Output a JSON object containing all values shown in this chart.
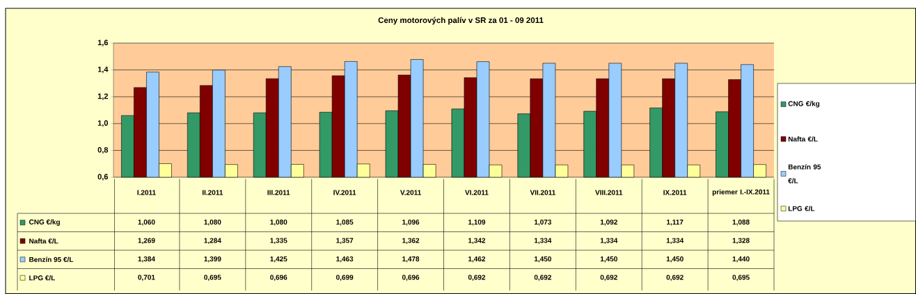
{
  "chart_data": {
    "type": "bar",
    "title": "Ceny motorových palív v SR za 01 - 09 2011",
    "categories": [
      "I.2011",
      "II.2011",
      "III.2011",
      "IV.2011",
      "V.2011",
      "VI.2011",
      "VII.2011",
      "VIII.2011",
      "IX.2011",
      "priemer I.-IX.2011"
    ],
    "series": [
      {
        "name": "CNG €/kg",
        "color": "#339966",
        "values": [
          1.06,
          1.08,
          1.08,
          1.085,
          1.096,
          1.109,
          1.073,
          1.092,
          1.117,
          1.088
        ],
        "value_labels": [
          "1,060",
          "1,080",
          "1,080",
          "1,085",
          "1,096",
          "1,109",
          "1,073",
          "1,092",
          "1,117",
          "1,088"
        ]
      },
      {
        "name": "Nafta €/L",
        "color": "#800000",
        "values": [
          1.269,
          1.284,
          1.335,
          1.357,
          1.362,
          1.342,
          1.334,
          1.334,
          1.334,
          1.328
        ],
        "value_labels": [
          "1,269",
          "1,284",
          "1,335",
          "1,357",
          "1,362",
          "1,342",
          "1,334",
          "1,334",
          "1,334",
          "1,328"
        ]
      },
      {
        "name": "Benzín 95 €/L",
        "color": "#99ccff",
        "values": [
          1.384,
          1.399,
          1.425,
          1.463,
          1.478,
          1.462,
          1.45,
          1.45,
          1.45,
          1.44
        ],
        "value_labels": [
          "1,384",
          "1,399",
          "1,425",
          "1,463",
          "1,478",
          "1,462",
          "1,450",
          "1,450",
          "1,450",
          "1,440"
        ]
      },
      {
        "name": "LPG €/L",
        "color": "#ffff99",
        "values": [
          0.701,
          0.695,
          0.696,
          0.699,
          0.696,
          0.692,
          0.692,
          0.692,
          0.692,
          0.695
        ],
        "value_labels": [
          "0,701",
          "0,695",
          "0,696",
          "0,699",
          "0,696",
          "0,692",
          "0,692",
          "0,692",
          "0,692",
          "0,695"
        ]
      }
    ],
    "ylim": [
      0.6,
      1.6
    ],
    "yticks": [
      {
        "value": 0.6,
        "label": "0,6"
      },
      {
        "value": 0.8,
        "label": "0,8"
      },
      {
        "value": 1.0,
        "label": "1,0"
      },
      {
        "value": 1.2,
        "label": "1,2"
      },
      {
        "value": 1.4,
        "label": "1,4"
      },
      {
        "value": 1.6,
        "label": "1,6"
      }
    ],
    "grid": "y",
    "legend": "right"
  }
}
